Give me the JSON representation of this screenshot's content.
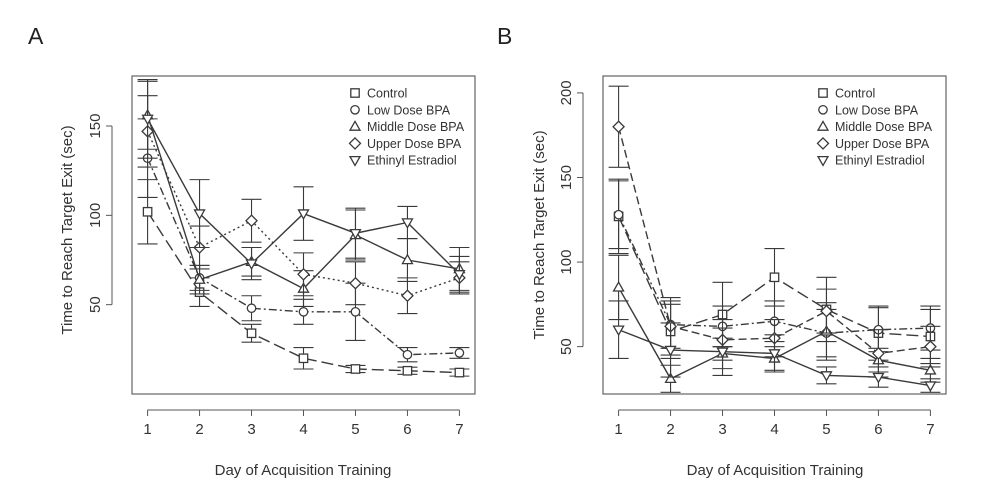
{
  "chart_data": [
    {
      "type": "line",
      "panel_label": "A",
      "xlabel": "Day of Acquisition Training",
      "ylabel": "Time to Reach Target Exit (sec)",
      "x": [
        1,
        2,
        3,
        4,
        5,
        6,
        7
      ],
      "xticks": [
        "1",
        "2",
        "3",
        "4",
        "5",
        "6",
        "7"
      ],
      "yticks": [
        50,
        100,
        150
      ],
      "xlim": [
        0.7,
        7.3
      ],
      "ylim": [
        0,
        178
      ],
      "legend_position": "top-right",
      "series": [
        {
          "name": "Control",
          "marker": "square",
          "dash": "long-dash",
          "values": [
            102,
            57,
            34,
            20,
            14,
            13,
            12
          ],
          "err": [
            18,
            8,
            5,
            6,
            2,
            2,
            2
          ]
        },
        {
          "name": "Low Dose BPA",
          "marker": "circle",
          "dash": "dash-dot",
          "values": [
            132,
            65,
            48,
            46,
            46,
            22,
            23
          ],
          "err": [
            22,
            7,
            7,
            7,
            16,
            4,
            3
          ]
        },
        {
          "name": "Middle Dose BPA",
          "marker": "triangle-up",
          "dash": "solid",
          "values": [
            156,
            64,
            74,
            59,
            89,
            75,
            70
          ],
          "err": [
            19,
            8,
            8,
            10,
            14,
            12,
            12
          ]
        },
        {
          "name": "Upper Dose BPA",
          "marker": "diamond",
          "dash": "dot",
          "values": [
            147,
            82,
            97,
            67,
            62,
            55,
            65
          ],
          "err": [
            20,
            12,
            12,
            12,
            12,
            10,
            9
          ]
        },
        {
          "name": "Ethinyl Estradiol",
          "marker": "triangle-down",
          "dash": "solid",
          "values": [
            154,
            101,
            73,
            101,
            90,
            96,
            67
          ],
          "err": [
            22,
            19,
            9,
            15,
            14,
            9,
            10
          ]
        }
      ]
    },
    {
      "type": "line",
      "panel_label": "B",
      "xlabel": "Day of Acquisition Training",
      "ylabel": "Time to Reach Target Exit (sec)",
      "x": [
        1,
        2,
        3,
        4,
        5,
        6,
        7
      ],
      "xticks": [
        "1",
        "2",
        "3",
        "4",
        "5",
        "6",
        "7"
      ],
      "yticks": [
        50,
        100,
        150,
        200
      ],
      "xlim": [
        0.7,
        7.3
      ],
      "ylim": [
        22,
        210
      ],
      "legend_position": "top-right",
      "series": [
        {
          "name": "Control",
          "marker": "square",
          "dash": "long-dash",
          "values": [
            127,
            59,
            69,
            91,
            72,
            58,
            56
          ],
          "err": [
            22,
            16,
            19,
            17,
            19,
            16,
            16
          ]
        },
        {
          "name": "Low Dose BPA",
          "marker": "circle",
          "dash": "dash-dot",
          "values": [
            128,
            63,
            62,
            65,
            58,
            60,
            61
          ],
          "err": [
            20,
            14,
            12,
            12,
            14,
            13,
            13
          ]
        },
        {
          "name": "Middle Dose BPA",
          "marker": "triangle-up",
          "dash": "solid",
          "values": [
            85,
            31,
            46,
            43,
            59,
            42,
            36
          ],
          "err": [
            19,
            8,
            9,
            7,
            17,
            7,
            7
          ]
        },
        {
          "name": "Upper Dose BPA",
          "marker": "diamond",
          "dash": "dash",
          "values": [
            180,
            62,
            54,
            55,
            71,
            46,
            50
          ],
          "err": [
            24,
            17,
            12,
            11,
            13,
            14,
            12
          ]
        },
        {
          "name": "Ethinyl Estradiol",
          "marker": "triangle-down",
          "dash": "solid",
          "values": [
            60,
            48,
            47,
            46,
            33,
            32,
            27
          ],
          "err": [
            17,
            16,
            14,
            11,
            5,
            6,
            4
          ]
        }
      ]
    }
  ]
}
